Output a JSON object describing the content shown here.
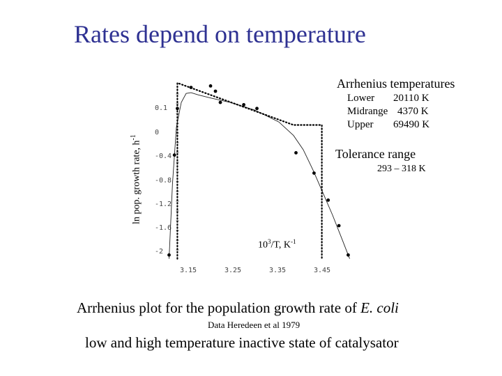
{
  "slide": {
    "title": "Rates depend on temperature",
    "caption_prefix": "Arrhenius plot for the population growth rate of ",
    "caption_italic": "E. coli",
    "source": "Data Heredeen et al 1979",
    "subcaption": "low and high temperature inactive state of catalysator"
  },
  "annotations": {
    "arrhenius_title": "Arrhenius temperatures",
    "rows": [
      {
        "label": "Lower",
        "value": "20110 K"
      },
      {
        "label": "Midrange",
        "value": "4370 K"
      },
      {
        "label": "Upper",
        "value": "69490 K"
      }
    ],
    "tolerance_title": "Tolerance range",
    "tolerance_value": "293 – 318 K"
  },
  "chart_data": {
    "type": "scatter",
    "title": "",
    "xlabel_base": "10",
    "xlabel_sup1": "3",
    "xlabel_mid": "/T, K",
    "xlabel_sup2": "-1",
    "ylabel_text": "ln pop. growth rate, h",
    "ylabel_sup": "-1",
    "x_ticks": [
      "3.15",
      "3.25",
      "3.35",
      "3.45"
    ],
    "y_ticks": [
      "0.1",
      "0",
      "-0.4",
      "-0.8",
      "-1.2",
      "-1.6",
      "-2"
    ],
    "xlim": [
      3.11,
      3.51
    ],
    "ylim": [
      -2.05,
      0.35
    ],
    "points": [
      {
        "x": 3.125,
        "y": -1.95
      },
      {
        "x": 3.136,
        "y": -0.62
      },
      {
        "x": 3.142,
        "y": 0.0
      },
      {
        "x": 3.17,
        "y": 0.28
      },
      {
        "x": 3.21,
        "y": 0.3
      },
      {
        "x": 3.22,
        "y": 0.23
      },
      {
        "x": 3.23,
        "y": 0.08
      },
      {
        "x": 3.278,
        "y": 0.05
      },
      {
        "x": 3.305,
        "y": 0.0
      },
      {
        "x": 3.385,
        "y": -0.59
      },
      {
        "x": 3.422,
        "y": -0.86
      },
      {
        "x": 3.451,
        "y": -1.22
      },
      {
        "x": 3.473,
        "y": -1.56
      },
      {
        "x": 3.492,
        "y": -1.95
      }
    ],
    "fit_curve": [
      {
        "x": 3.125,
        "y": -2.0
      },
      {
        "x": 3.132,
        "y": -1.0
      },
      {
        "x": 3.14,
        "y": -0.25
      },
      {
        "x": 3.15,
        "y": 0.08
      },
      {
        "x": 3.16,
        "y": 0.2
      },
      {
        "x": 3.17,
        "y": 0.21
      },
      {
        "x": 3.185,
        "y": 0.18
      },
      {
        "x": 3.21,
        "y": 0.14
      },
      {
        "x": 3.25,
        "y": 0.08
      },
      {
        "x": 3.3,
        "y": -0.02
      },
      {
        "x": 3.35,
        "y": -0.18
      },
      {
        "x": 3.38,
        "y": -0.36
      },
      {
        "x": 3.4,
        "y": -0.55
      },
      {
        "x": 3.42,
        "y": -0.82
      },
      {
        "x": 3.44,
        "y": -1.12
      },
      {
        "x": 3.46,
        "y": -1.42
      },
      {
        "x": 3.48,
        "y": -1.75
      },
      {
        "x": 3.495,
        "y": -2.0
      }
    ],
    "dotted_envelope": [
      {
        "x": 3.142,
        "y": -2.0
      },
      {
        "x": 3.142,
        "y": 0.34
      },
      {
        "x": 3.38,
        "y": -0.22
      },
      {
        "x": 3.438,
        "y": -0.22
      },
      {
        "x": 3.438,
        "y": -2.0
      }
    ],
    "grid": false,
    "legend": "none"
  }
}
